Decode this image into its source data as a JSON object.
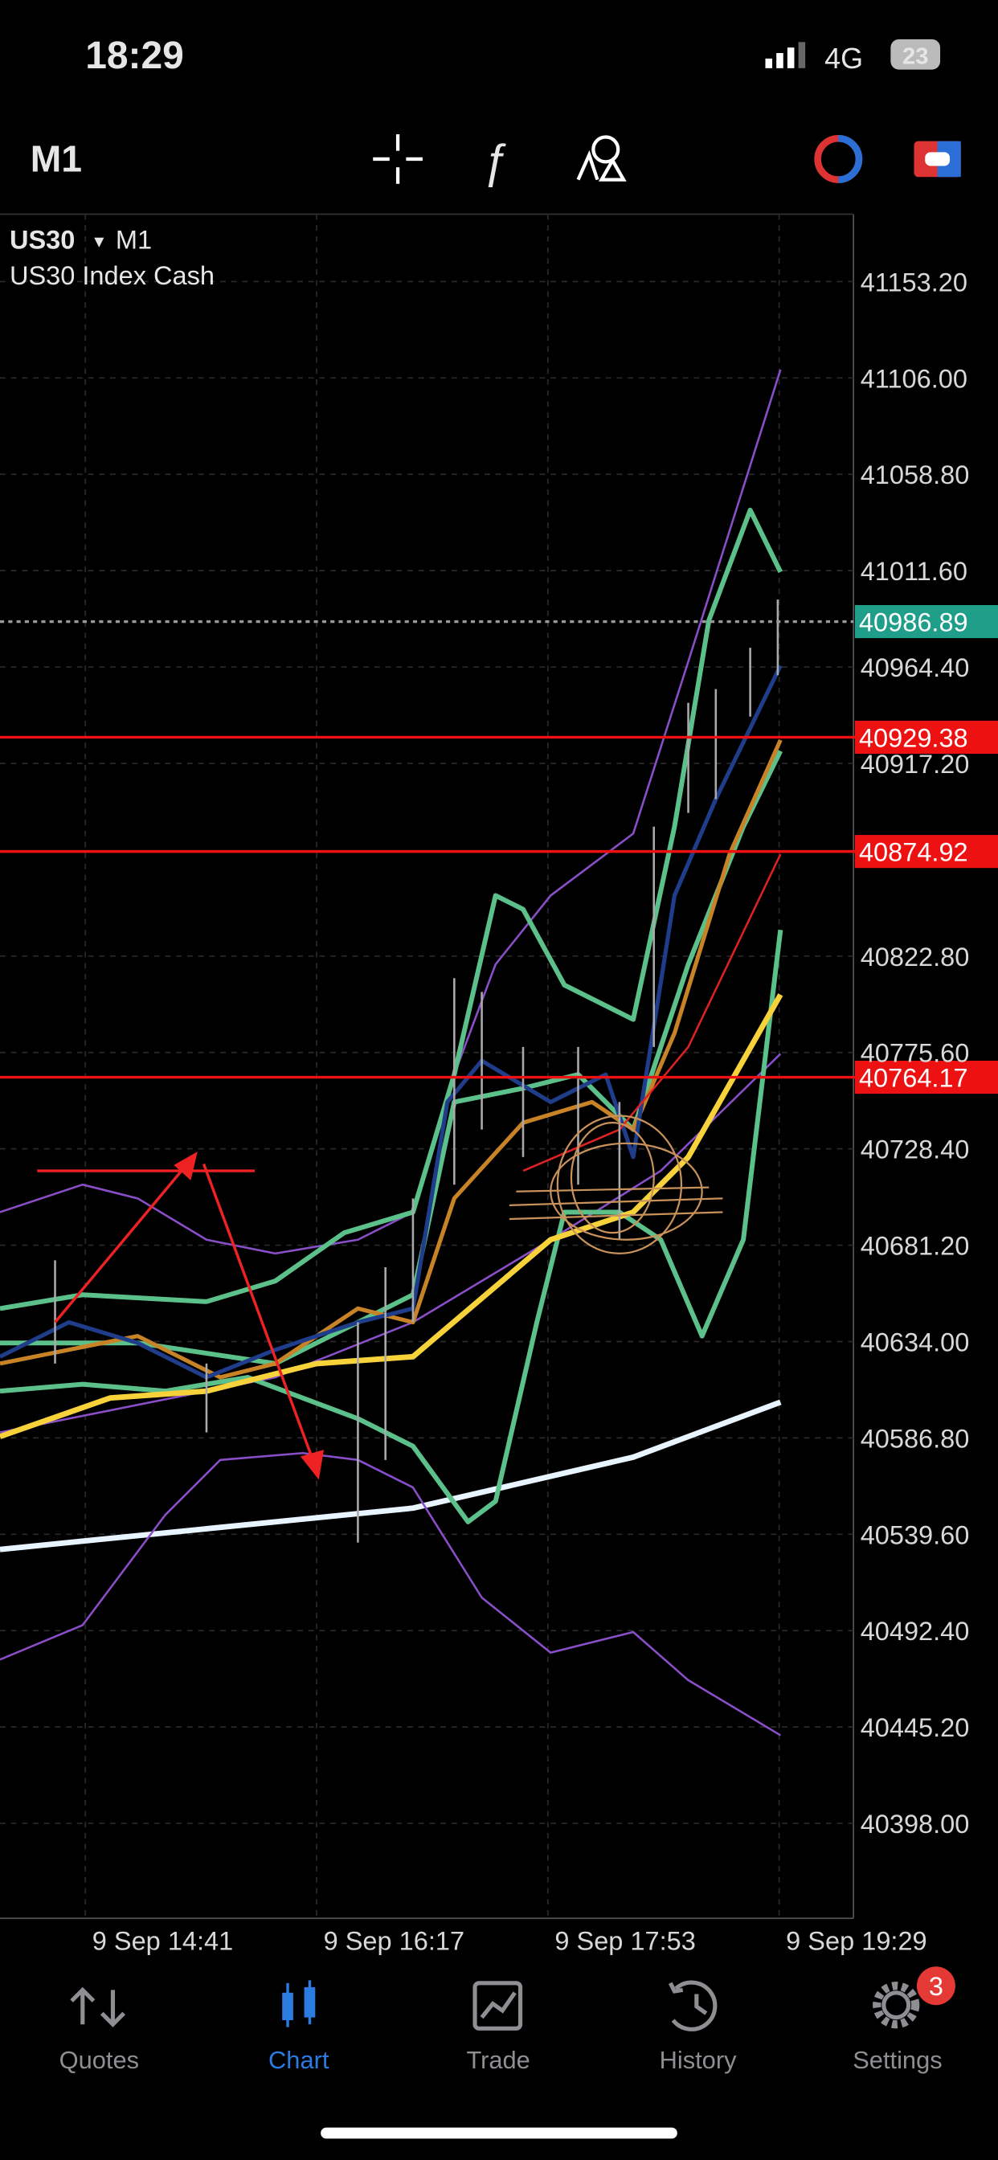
{
  "status_bar": {
    "time": "18:29",
    "network": "4G",
    "battery": "23"
  },
  "toolbar": {
    "timeframe": "M1"
  },
  "chart": {
    "symbol": "US30",
    "timeframe": "M1",
    "description": "US30 Index Cash",
    "price_labels": [
      "41153.20",
      "41106.00",
      "41058.80",
      "41011.60",
      "40964.40",
      "40917.20",
      "40822.80",
      "40775.60",
      "40728.40",
      "40681.20",
      "40634.00",
      "40586.80",
      "40539.60",
      "40492.40",
      "40445.20",
      "40398.00"
    ],
    "current_price": "40986.89",
    "levels": [
      "40929.38",
      "40874.92",
      "40764.17"
    ],
    "time_labels": [
      "9 Sep 14:41",
      "9 Sep 16:17",
      "9 Sep 17:53",
      "9 Sep 19:29"
    ]
  },
  "tabs": [
    {
      "label": "Quotes"
    },
    {
      "label": "Chart"
    },
    {
      "label": "Trade"
    },
    {
      "label": "History"
    },
    {
      "label": "Settings",
      "badge": "3"
    }
  ]
}
